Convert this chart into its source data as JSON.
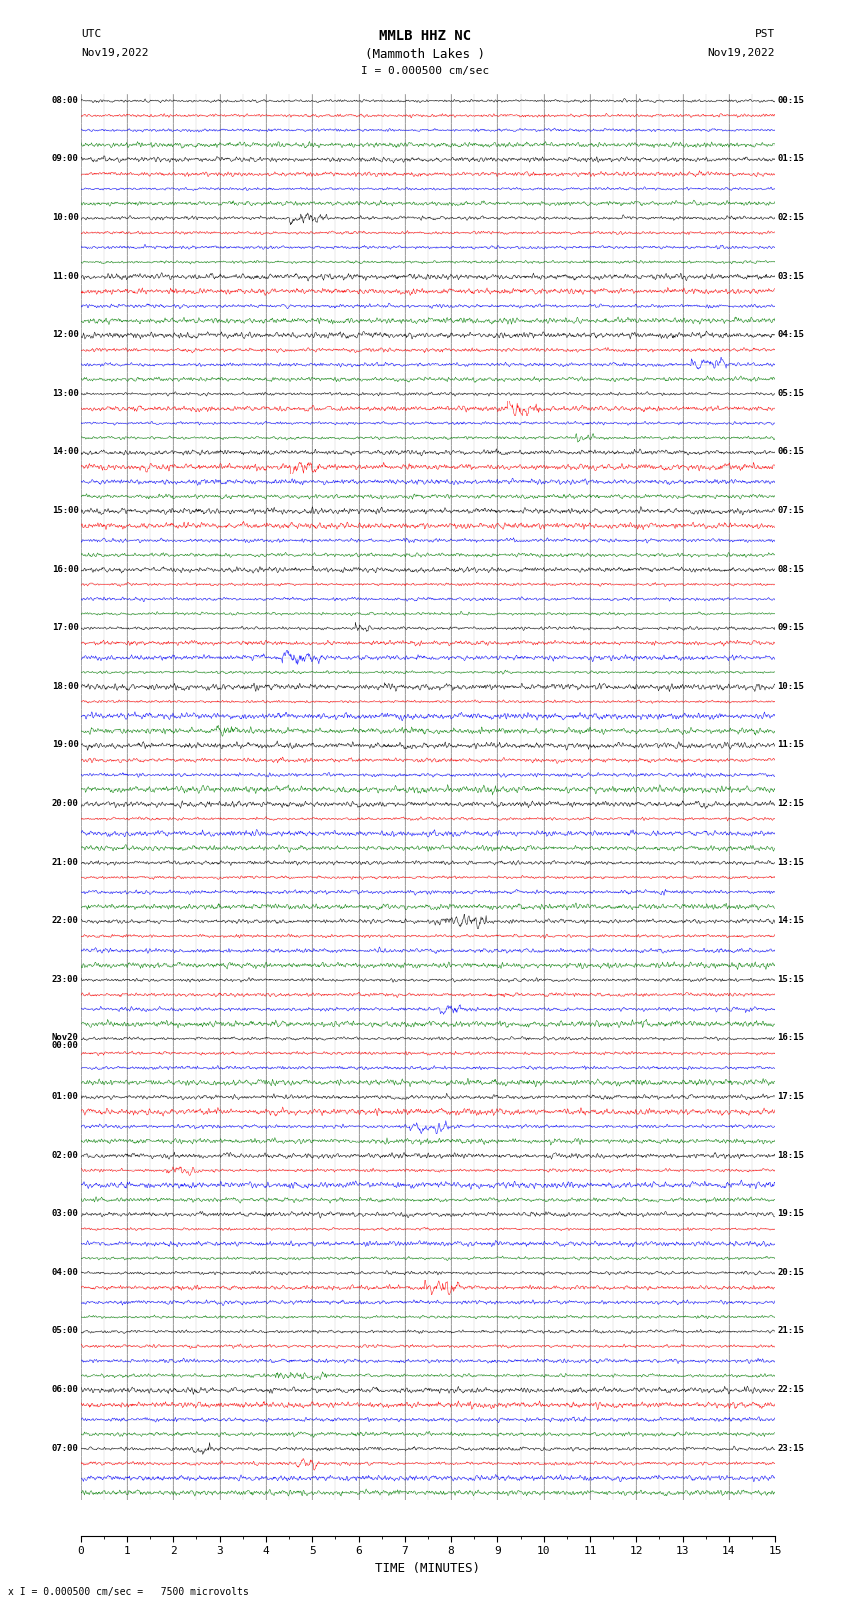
{
  "title_line1": "MMLB HHZ NC",
  "title_line2": "(Mammoth Lakes )",
  "scale_label": "I = 0.000500 cm/sec",
  "bottom_label": "x I = 0.000500 cm/sec =   7500 microvolts",
  "xlabel": "TIME (MINUTES)",
  "utc_label1": "UTC",
  "utc_label2": "Nov19,2022",
  "pst_label1": "PST",
  "pst_label2": "Nov19,2022",
  "left_times": [
    "08:00",
    "09:00",
    "10:00",
    "11:00",
    "12:00",
    "13:00",
    "14:00",
    "15:00",
    "16:00",
    "17:00",
    "18:00",
    "19:00",
    "20:00",
    "21:00",
    "22:00",
    "23:00",
    "Nov20\n00:00",
    "01:00",
    "02:00",
    "03:00",
    "04:00",
    "05:00",
    "06:00",
    "07:00"
  ],
  "right_times": [
    "00:15",
    "01:15",
    "02:15",
    "03:15",
    "04:15",
    "05:15",
    "06:15",
    "07:15",
    "08:15",
    "09:15",
    "10:15",
    "11:15",
    "12:15",
    "13:15",
    "14:15",
    "15:15",
    "16:15",
    "17:15",
    "18:15",
    "19:15",
    "20:15",
    "21:15",
    "22:15",
    "23:15"
  ],
  "num_rows": 24,
  "traces_per_row": 4,
  "minutes_per_row": 15,
  "noise_scale": 0.012,
  "trace_colors": [
    "black",
    "red",
    "blue",
    "green"
  ],
  "bg_color": "white",
  "grid_color": "#666666",
  "fig_width": 8.5,
  "fig_height": 16.13,
  "dpi": 100,
  "samples_per_row": 1500
}
